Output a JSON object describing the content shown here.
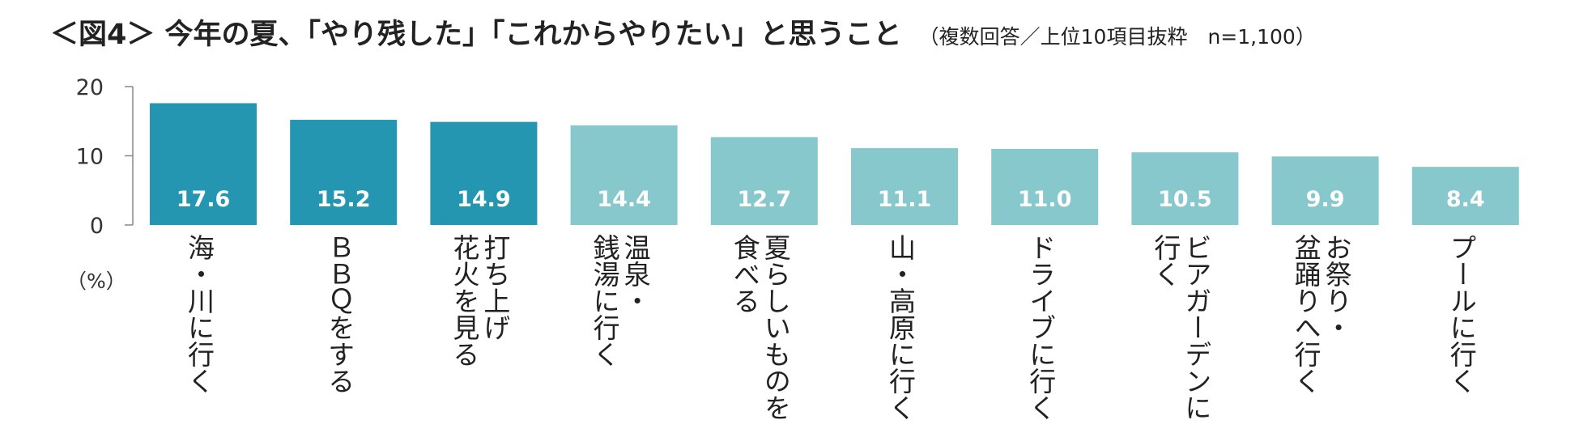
{
  "header": {
    "title": "＜図4＞ 今年の夏、「やり残した」「これからやりたい」と思うこと",
    "subtitle": "（複数回答／上位10項目抜粋　n=1,100）"
  },
  "chart_data": {
    "type": "bar",
    "ylabel": "（%）",
    "ylim": [
      0,
      20
    ],
    "yticks": [
      0,
      10,
      20
    ],
    "grid": false,
    "categories": [
      "海・川に行く",
      "BBQをする",
      "打ち上げ花火を見る",
      "温泉・銭湯に行く",
      "夏らしいものを食べる",
      "山・高原に行く",
      "ドライブに行く",
      "ビアガーデンに行く",
      "お祭り・盆踊りへ行く",
      "プールに行く"
    ],
    "category_lines": [
      [
        "海・川に行く"
      ],
      [
        "ＢＢＱをする"
      ],
      [
        "打ち上げ",
        "花火を見る"
      ],
      [
        "温泉・",
        "銭湯に行く"
      ],
      [
        "夏らしいものを",
        "食べる"
      ],
      [
        "山・高原に行く"
      ],
      [
        "ドライブに行く"
      ],
      [
        "ビアガーデンに",
        "行く"
      ],
      [
        "お祭り・",
        "盆踊りへ行く"
      ],
      [
        "プールに行く"
      ]
    ],
    "values": [
      17.6,
      15.2,
      14.9,
      14.4,
      12.7,
      11.1,
      11.0,
      10.5,
      9.9,
      8.4
    ],
    "value_labels": [
      "17.6",
      "15.2",
      "14.9",
      "14.4",
      "12.7",
      "11.1",
      "11.0",
      "10.5",
      "9.9",
      "8.4"
    ],
    "colors": {
      "highlight": "#2596b1",
      "normal": "#86c8cc",
      "axis": "#888888"
    },
    "highlight_count": 3
  }
}
